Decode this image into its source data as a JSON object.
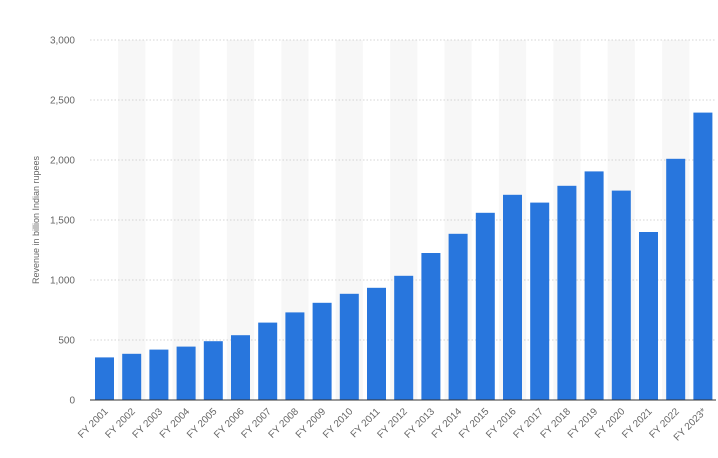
{
  "chart_data": {
    "type": "bar",
    "title": "",
    "xlabel": "",
    "ylabel": "Revenue in billion Indian rupees",
    "categories": [
      "FY 2001",
      "FY 2002",
      "FY 2003",
      "FY 2004",
      "FY 2005",
      "FY 2006",
      "FY 2007",
      "FY 2008",
      "FY 2009",
      "FY 2010",
      "FY 2011",
      "FY 2012",
      "FY 2013",
      "FY 2014",
      "FY 2015",
      "FY 2016",
      "FY 2017",
      "FY 2018",
      "FY 2019",
      "FY 2020",
      "FY 2021",
      "FY 2022",
      "FY 2023*"
    ],
    "values": [
      355,
      385,
      420,
      445,
      490,
      540,
      645,
      730,
      810,
      885,
      935,
      1035,
      1225,
      1385,
      1560,
      1710,
      1645,
      1785,
      1905,
      1745,
      1400,
      2010,
      2395
    ],
    "ylim": [
      0,
      3000
    ],
    "yticks": [
      0,
      500,
      1000,
      1500,
      2000,
      2500,
      3000
    ],
    "ytick_labels": [
      "0",
      "500",
      "1,000",
      "1,500",
      "2,000",
      "2,500",
      "3,000"
    ],
    "grid": true,
    "colors": {
      "bar": "#2876dd",
      "grid": "#c8c8c8",
      "band": "#f7f7f7",
      "axis": "#333333"
    }
  }
}
